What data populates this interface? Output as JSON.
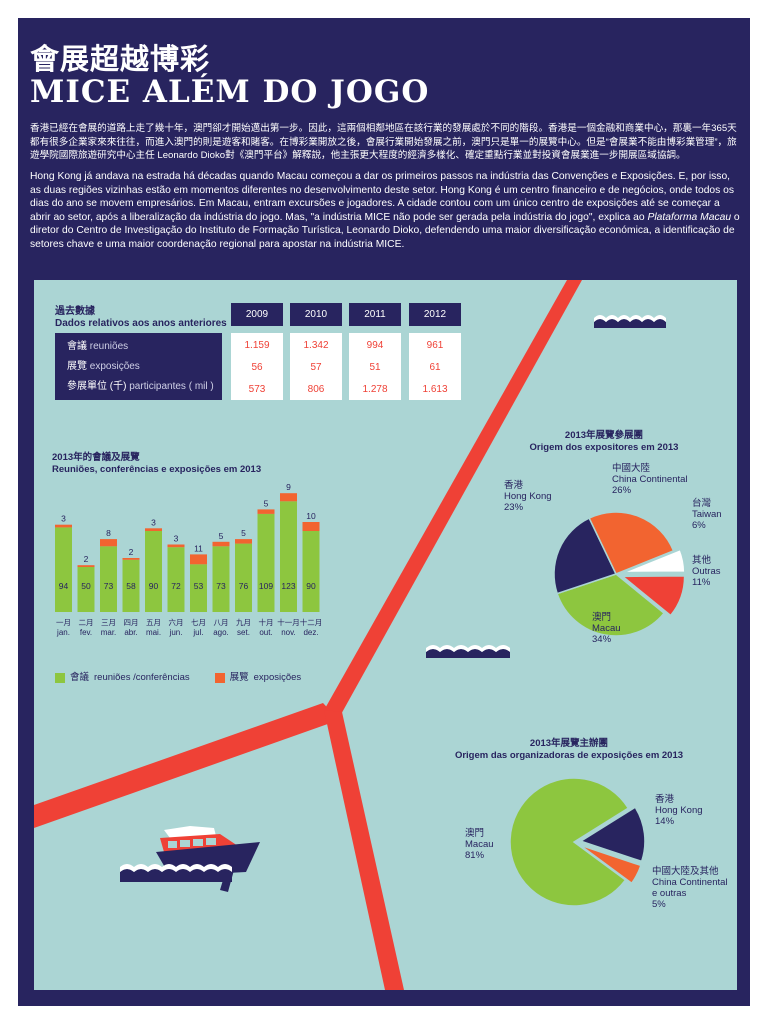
{
  "header": {
    "title_zh": "會展超越博彩",
    "title_pt": "MICE ALÉM DO JOGO"
  },
  "intro": {
    "zh": "香港已經在會展的道路上走了幾十年，澳門卻才開始邁出第一步。因此，這兩個相鄰地區在該行業的發展處於不同的階段。香港是一個金融和商業中心，那裏一年365天都有很多企業家來來往往，而進入澳門的則是遊客和賭客。在博彩業開放之後，會展行業開始發展之前，澳門只是單一的展覽中心。但是“會展業不能由博彩業管理”，旅遊學院國際旅遊研究中心主任 Leonardo Dioko對《澳門平台》解釋說，他主張更大程度的經濟多樣化、確定重點行業並對投資會展業進一步開展區域協調。",
    "pt_1": "Hong Kong já andava na estrada há décadas quando Macau começou a dar os primeiros passos na indústria das Convenções e Exposições. E, por isso, as duas regiões vizinhas estão em momentos diferentes no desenvolvimento deste setor. Hong Kong é um centro financeiro e de negócios, onde todos os dias do ano se movem empresários. Em Macau, entram excursões e jogadores. A cidade contou com um único centro de exposições até se começar a abrir ao setor, após a liberalização da indústria do jogo. Mas, \"a indústria MICE não pode ser gerada pela indústria do jogo\", explica ao ",
    "pt_em": "Plataforma Macau",
    "pt_2": " o diretor do Centro de Investigação do Instituto de Formação Turística, Leonardo Dioko, defendendo uma maior diversificação económica, a identificação de setores chave e uma maior coordenação regional para apostar na indústria MICE."
  },
  "colors": {
    "navy": "#28245f",
    "panel": "#abd5d4",
    "red": "#ef4136",
    "orange": "#f26430",
    "green": "#8dc63f",
    "white": "#ffffff"
  },
  "chart_data": [
    {
      "type": "table",
      "title_zh": "過去數據",
      "title": "Dados relativos aos anos anteriores",
      "columns": [
        "2009",
        "2010",
        "2011",
        "2012"
      ],
      "rows": [
        {
          "label_zh": "會議",
          "label": "reuniões",
          "values": [
            "1.159",
            "1.342",
            "994",
            "961"
          ]
        },
        {
          "label_zh": "展覽",
          "label": "exposições",
          "values": [
            "56",
            "57",
            "51",
            "61"
          ]
        },
        {
          "label_zh": "參展單位 (千)",
          "label": "participantes ( mil )",
          "values": [
            "573",
            "806",
            "1.278",
            "1.613"
          ]
        }
      ]
    },
    {
      "type": "bar",
      "stacked": true,
      "title_zh": "2013年的會議及展覽",
      "title": "Reuniões, conferências e exposições em 2013",
      "categories_zh": [
        "一月",
        "二月",
        "三月",
        "四月",
        "五月",
        "六月",
        "七月",
        "八月",
        "九月",
        "十月",
        "十一月",
        "十二月"
      ],
      "categories": [
        "jan.",
        "fev.",
        "mar.",
        "abr.",
        "mai.",
        "jun.",
        "jul.",
        "ago.",
        "set.",
        "out.",
        "nov.",
        "dez."
      ],
      "series": [
        {
          "name_zh": "會議",
          "name": "reuniões /conferências",
          "color": "#8dc63f",
          "values": [
            94,
            50,
            73,
            58,
            90,
            72,
            53,
            73,
            76,
            109,
            123,
            90
          ]
        },
        {
          "name_zh": "展覽",
          "name": "exposições",
          "color": "#f26430",
          "values": [
            3,
            2,
            8,
            2,
            3,
            3,
            11,
            5,
            5,
            5,
            9,
            10
          ]
        }
      ],
      "legend": "bottom"
    },
    {
      "type": "pie",
      "title_zh": "2013年展覽參展團",
      "title": "Origem dos expositores em 2013",
      "slices": [
        {
          "zh": "台灣",
          "name": "Taiwan",
          "value": 6,
          "pct": "6%",
          "color": "#ffffff",
          "explode": true
        },
        {
          "zh": "其他",
          "name": "Outras",
          "value": 11,
          "pct": "11%",
          "color": "#ef4136",
          "explode": true
        },
        {
          "zh": "澳門",
          "name": "Macau",
          "value": 34,
          "pct": "34%",
          "color": "#8dc63f"
        },
        {
          "zh": "香港",
          "name": "Hong Kong",
          "value": 23,
          "pct": "23%",
          "color": "#28245f"
        },
        {
          "zh": "中國大陸",
          "name": "China Continental",
          "value": 26,
          "pct": "26%",
          "color": "#f26430"
        }
      ]
    },
    {
      "type": "pie",
      "title_zh": "2013年展覽主辦團",
      "title": "Origem das organizadoras de exposições em 2013",
      "slices": [
        {
          "zh": "香港",
          "name": "Hong Kong",
          "value": 14,
          "pct": "14%",
          "color": "#28245f",
          "explode": true
        },
        {
          "zh": "中國大陸及其他",
          "name": "China Continental e outras",
          "value": 5,
          "pct": "5%",
          "color": "#f26430",
          "explode": true
        },
        {
          "zh": "澳門",
          "name": "Macau",
          "value": 81,
          "pct": "81%",
          "color": "#8dc63f"
        }
      ]
    }
  ]
}
